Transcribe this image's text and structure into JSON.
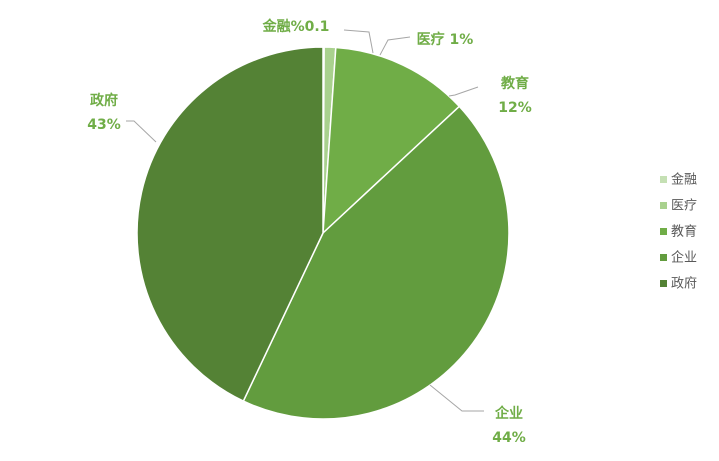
{
  "chart_data": {
    "type": "pie",
    "slices": [
      {
        "name": "金融",
        "value": 0.1,
        "label": "金融%0.1",
        "color": "#c5e0b4"
      },
      {
        "name": "医疗",
        "value": 1,
        "label": "医疗 1%",
        "color": "#a9d18e"
      },
      {
        "name": "教育",
        "value": 12,
        "label": "教育",
        "pct": "12%",
        "color": "#70ad47"
      },
      {
        "name": "企业",
        "value": 44,
        "label": "企业",
        "pct": "44%",
        "color": "#629c3e"
      },
      {
        "name": "政府",
        "value": 43,
        "label": "政府",
        "pct": "43%",
        "color": "#548235"
      }
    ],
    "legend": {
      "position": "right",
      "items": [
        "金融",
        "医疗",
        "教育",
        "企业",
        "政府"
      ]
    },
    "label_color": "#70ad47"
  }
}
